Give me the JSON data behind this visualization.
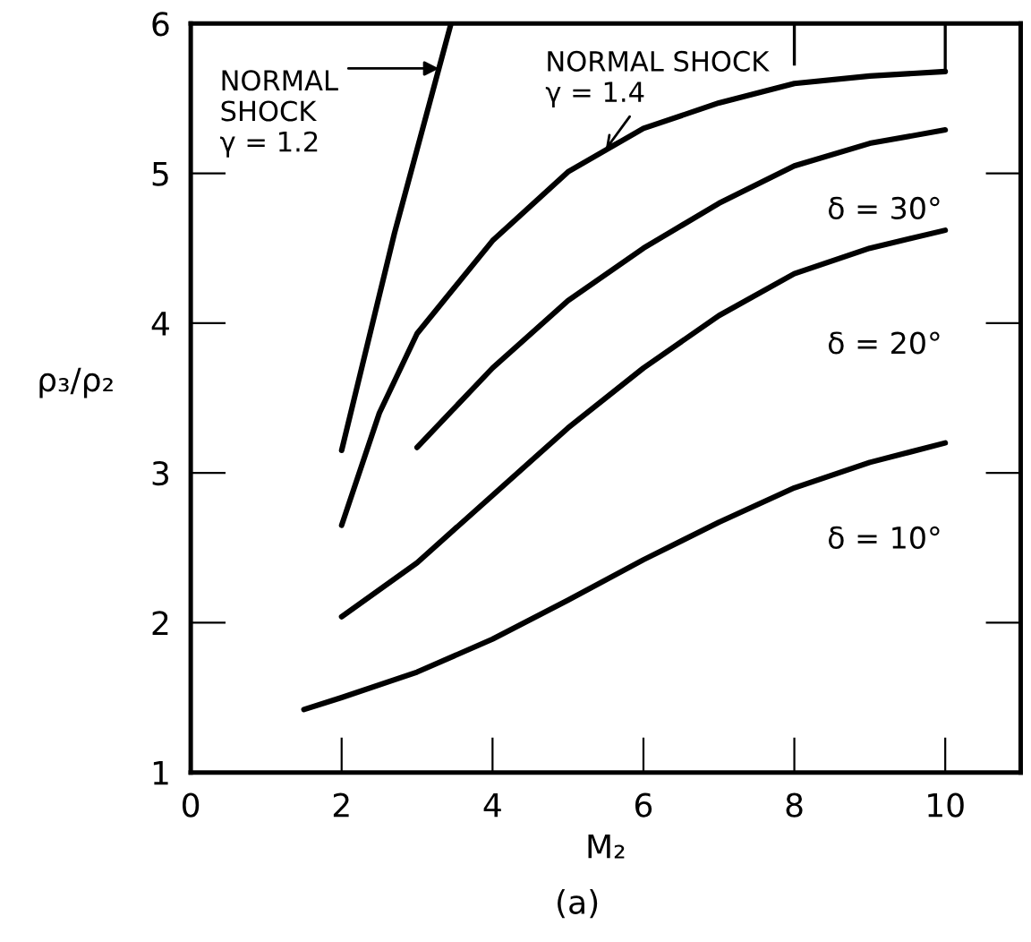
{
  "chart_data": {
    "type": "line",
    "xlabel": "M₂",
    "ylabel": "ρ₃/ρ₂",
    "xlim": [
      0,
      11
    ],
    "ylim": [
      1,
      6
    ],
    "xticks": [
      0,
      2,
      4,
      6,
      8,
      10
    ],
    "yticks": [
      1,
      2,
      3,
      4,
      5,
      6
    ],
    "grid": false,
    "legend": false,
    "marker": "none",
    "line_style": "solid",
    "series": [
      {
        "color": "#000000",
        "x": [
          2,
          2.7,
          3.45
        ],
        "values": [
          3.15,
          4.6,
          6.0
        ]
      },
      {
        "color": "#000000",
        "x": [
          2,
          2.5,
          3,
          4,
          5,
          6,
          7,
          8,
          9,
          10
        ],
        "values": [
          2.65,
          3.4,
          3.93,
          4.55,
          5.01,
          5.3,
          5.47,
          5.6,
          5.65,
          5.68
        ]
      },
      {
        "color": "#000000",
        "x": [
          3,
          4,
          5,
          6,
          7,
          8,
          9,
          10
        ],
        "values": [
          3.17,
          3.7,
          4.15,
          4.5,
          4.8,
          5.05,
          5.2,
          5.29
        ]
      },
      {
        "color": "#000000",
        "x": [
          2,
          3,
          4,
          5,
          6,
          7,
          8,
          9,
          10
        ],
        "values": [
          2.04,
          2.4,
          2.85,
          3.3,
          3.7,
          4.05,
          4.33,
          4.5,
          4.62
        ]
      },
      {
        "color": "#000000",
        "x": [
          1.5,
          2,
          3,
          4,
          5,
          6,
          7,
          8,
          9,
          10
        ],
        "values": [
          1.42,
          1.5,
          1.67,
          1.89,
          2.15,
          2.42,
          2.67,
          2.9,
          3.07,
          3.2
        ]
      }
    ],
    "annotations": [
      {
        "text": "NORMAL\nSHOCK\nγ = 1.2",
        "x": 3.29,
        "y": 5.7
      },
      {
        "text": "NORMAL SHOCK\nγ = 1.4",
        "x": 5.5,
        "y": 5.16
      },
      "δ = 30°",
      "δ = 20°",
      "δ = 10°",
      "(a)"
    ]
  }
}
